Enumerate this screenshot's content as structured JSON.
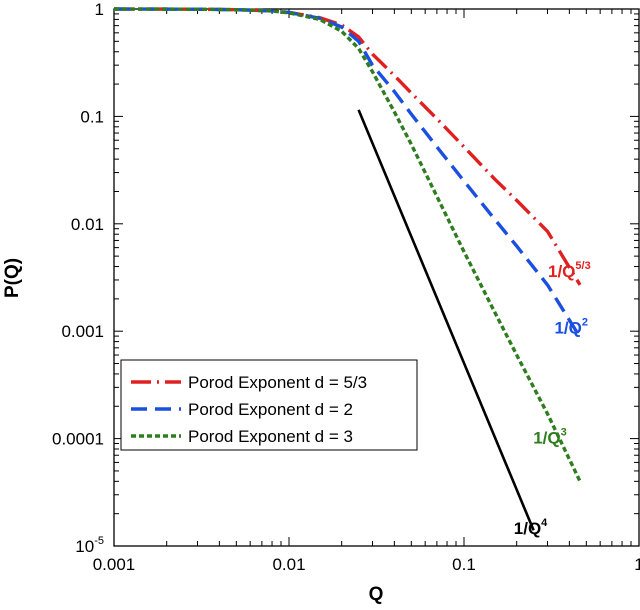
{
  "chart_data": {
    "type": "line",
    "xlabel": "Q",
    "ylabel": "P(Q)",
    "x_scale": "log",
    "y_scale": "log",
    "xlim": [
      0.001,
      1
    ],
    "ylim": [
      1e-05,
      1
    ],
    "x_ticks": [
      {
        "value": 0.001,
        "label": "0.001"
      },
      {
        "value": 0.01,
        "label": "0.01"
      },
      {
        "value": 0.1,
        "label": "0.1"
      },
      {
        "value": 1,
        "label": "1"
      }
    ],
    "y_ticks": [
      {
        "value": 1,
        "label": "1",
        "sup": ""
      },
      {
        "value": 0.1,
        "label": "0.1",
        "sup": ""
      },
      {
        "value": 0.01,
        "label": "0.01",
        "sup": ""
      },
      {
        "value": 0.001,
        "label": "0.001",
        "sup": ""
      },
      {
        "value": 0.0001,
        "label": "0.0001",
        "sup": ""
      },
      {
        "value": 1e-05,
        "label": "10",
        "sup": "-5"
      }
    ],
    "grid": false,
    "legend_position": "lower-left",
    "series": [
      {
        "name": "Porod Exponent d = 5/3",
        "color": "#e02020",
        "style": "long-dash-dot",
        "x": [
          0.001,
          0.003,
          0.005,
          0.008,
          0.01,
          0.015,
          0.02,
          0.025,
          0.03,
          0.04,
          0.05,
          0.07,
          0.1,
          0.15,
          0.2,
          0.3,
          0.46
        ],
        "y": [
          1,
          0.995,
          0.985,
          0.96,
          0.93,
          0.83,
          0.71,
          0.55,
          0.38,
          0.24,
          0.165,
          0.095,
          0.052,
          0.026,
          0.0165,
          0.0085,
          0.0027
        ]
      },
      {
        "name": "Porod Exponent d = 2",
        "color": "#1a4fe0",
        "style": "long-dash",
        "x": [
          0.001,
          0.003,
          0.005,
          0.008,
          0.01,
          0.015,
          0.02,
          0.025,
          0.03,
          0.04,
          0.05,
          0.07,
          0.1,
          0.15,
          0.2,
          0.3,
          0.46
        ],
        "y": [
          1,
          0.995,
          0.985,
          0.96,
          0.93,
          0.82,
          0.68,
          0.5,
          0.3,
          0.17,
          0.105,
          0.052,
          0.025,
          0.011,
          0.0062,
          0.0027,
          0.00088
        ]
      },
      {
        "name": "Porod Exponent d = 3",
        "color": "#2e7d1e",
        "style": "short-dash",
        "x": [
          0.001,
          0.003,
          0.005,
          0.008,
          0.01,
          0.015,
          0.02,
          0.025,
          0.03,
          0.04,
          0.05,
          0.07,
          0.1,
          0.15,
          0.2,
          0.3,
          0.46
        ],
        "y": [
          1,
          0.995,
          0.985,
          0.96,
          0.92,
          0.8,
          0.62,
          0.43,
          0.26,
          0.11,
          0.055,
          0.018,
          0.0055,
          0.0015,
          0.0006,
          0.00017,
          4e-05
        ]
      },
      {
        "color": "#000000",
        "style": "solid",
        "x": [
          0.025,
          0.25
        ],
        "y": [
          0.115,
          1.4e-05
        ]
      }
    ],
    "annotations": [
      {
        "base": "1/Q",
        "sup": "5/3",
        "color": "#e02020",
        "x": 0.4,
        "y": 0.0032
      },
      {
        "base": "1/Q",
        "sup": "2",
        "color": "#1a4fe0",
        "x": 0.41,
        "y": 0.00095
      },
      {
        "base": "1/Q",
        "sup": "3",
        "color": "#2e7d1e",
        "x": 0.31,
        "y": 9e-05
      },
      {
        "base": "1/Q",
        "sup": "4",
        "color": "#000000",
        "x": 0.24,
        "y": 1.3e-05
      }
    ]
  }
}
